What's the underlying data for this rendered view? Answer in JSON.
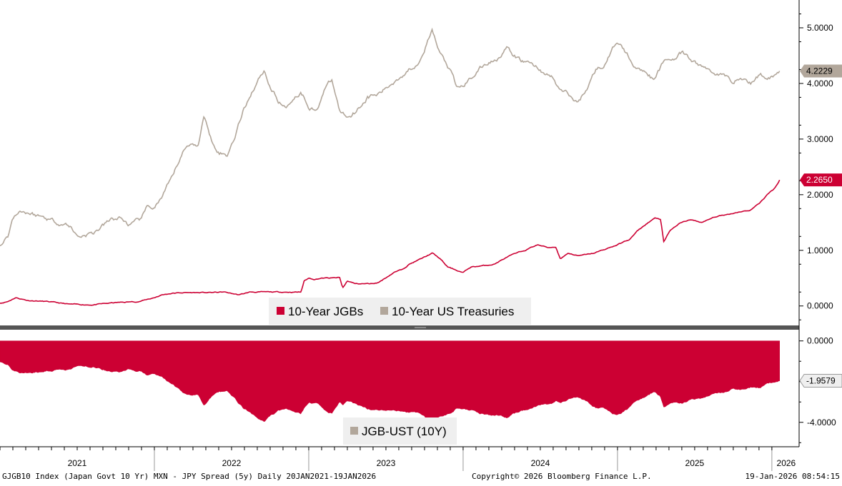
{
  "chart_data": [
    {
      "type": "line",
      "panel": "top",
      "ylim": [
        -0.35,
        5.5
      ],
      "yticks": [
        {
          "value": 5.0,
          "label": "5.0000"
        },
        {
          "value": 4.0,
          "label": "4.0000"
        },
        {
          "value": 3.0,
          "label": "3.0000"
        },
        {
          "value": 2.0,
          "label": "2.0000"
        },
        {
          "value": 1.0,
          "label": "1.0000"
        },
        {
          "value": 0.0,
          "label": "0.0000"
        }
      ],
      "series": [
        {
          "name": "10-Year JGBs",
          "color": "#cc0033",
          "last_value": 2.265,
          "last_label": "2.2650",
          "points": [
            [
              2021.0,
              0.05
            ],
            [
              2021.05,
              0.08
            ],
            [
              2021.1,
              0.15
            ],
            [
              2021.18,
              0.1
            ],
            [
              2021.3,
              0.08
            ],
            [
              2021.45,
              0.03
            ],
            [
              2021.6,
              0.02
            ],
            [
              2021.75,
              0.06
            ],
            [
              2021.9,
              0.08
            ],
            [
              2022.0,
              0.15
            ],
            [
              2022.05,
              0.2
            ],
            [
              2022.12,
              0.23
            ],
            [
              2022.2,
              0.24
            ],
            [
              2022.35,
              0.24
            ],
            [
              2022.45,
              0.25
            ],
            [
              2022.55,
              0.2
            ],
            [
              2022.62,
              0.25
            ],
            [
              2022.75,
              0.25
            ],
            [
              2022.95,
              0.25
            ],
            [
              2022.97,
              0.45
            ],
            [
              2023.0,
              0.5
            ],
            [
              2023.04,
              0.48
            ],
            [
              2023.08,
              0.5
            ],
            [
              2023.15,
              0.5
            ],
            [
              2023.2,
              0.51
            ],
            [
              2023.22,
              0.32
            ],
            [
              2023.25,
              0.45
            ],
            [
              2023.3,
              0.4
            ],
            [
              2023.4,
              0.4
            ],
            [
              2023.45,
              0.42
            ],
            [
              2023.55,
              0.6
            ],
            [
              2023.6,
              0.65
            ],
            [
              2023.65,
              0.75
            ],
            [
              2023.73,
              0.85
            ],
            [
              2023.8,
              0.95
            ],
            [
              2023.85,
              0.85
            ],
            [
              2023.9,
              0.7
            ],
            [
              2023.95,
              0.65
            ],
            [
              2024.0,
              0.6
            ],
            [
              2024.05,
              0.7
            ],
            [
              2024.12,
              0.72
            ],
            [
              2024.2,
              0.75
            ],
            [
              2024.3,
              0.9
            ],
            [
              2024.4,
              1.0
            ],
            [
              2024.48,
              1.1
            ],
            [
              2024.55,
              1.05
            ],
            [
              2024.6,
              1.06
            ],
            [
              2024.63,
              0.85
            ],
            [
              2024.68,
              0.95
            ],
            [
              2024.75,
              0.9
            ],
            [
              2024.85,
              0.95
            ],
            [
              2024.95,
              1.05
            ],
            [
              2025.0,
              1.1
            ],
            [
              2025.08,
              1.2
            ],
            [
              2025.13,
              1.35
            ],
            [
              2025.2,
              1.5
            ],
            [
              2025.24,
              1.58
            ],
            [
              2025.28,
              1.55
            ],
            [
              2025.3,
              1.15
            ],
            [
              2025.34,
              1.35
            ],
            [
              2025.4,
              1.48
            ],
            [
              2025.47,
              1.55
            ],
            [
              2025.55,
              1.5
            ],
            [
              2025.63,
              1.6
            ],
            [
              2025.72,
              1.65
            ],
            [
              2025.8,
              1.7
            ],
            [
              2025.86,
              1.72
            ],
            [
              2025.92,
              1.85
            ],
            [
              2025.97,
              2.0
            ],
            [
              2026.02,
              2.12
            ],
            [
              2026.05,
              2.265
            ]
          ]
        },
        {
          "name": "10-Year US Treasuries",
          "color": "#b2a79b",
          "last_value": 4.2229,
          "last_label": "4.2229",
          "points": [
            [
              2021.0,
              1.08
            ],
            [
              2021.05,
              1.25
            ],
            [
              2021.08,
              1.55
            ],
            [
              2021.12,
              1.72
            ],
            [
              2021.18,
              1.68
            ],
            [
              2021.25,
              1.62
            ],
            [
              2021.3,
              1.58
            ],
            [
              2021.38,
              1.5
            ],
            [
              2021.45,
              1.45
            ],
            [
              2021.5,
              1.25
            ],
            [
              2021.55,
              1.28
            ],
            [
              2021.6,
              1.3
            ],
            [
              2021.65,
              1.4
            ],
            [
              2021.72,
              1.55
            ],
            [
              2021.78,
              1.58
            ],
            [
              2021.84,
              1.45
            ],
            [
              2021.9,
              1.52
            ],
            [
              2021.95,
              1.75
            ],
            [
              2022.0,
              1.78
            ],
            [
              2022.05,
              1.95
            ],
            [
              2022.12,
              2.32
            ],
            [
              2022.18,
              2.75
            ],
            [
              2022.24,
              2.95
            ],
            [
              2022.28,
              2.85
            ],
            [
              2022.32,
              3.4
            ],
            [
              2022.37,
              3.0
            ],
            [
              2022.42,
              2.78
            ],
            [
              2022.47,
              2.7
            ],
            [
              2022.52,
              3.05
            ],
            [
              2022.58,
              3.55
            ],
            [
              2022.63,
              3.85
            ],
            [
              2022.67,
              4.05
            ],
            [
              2022.71,
              4.25
            ],
            [
              2022.75,
              3.95
            ],
            [
              2022.8,
              3.7
            ],
            [
              2022.85,
              3.55
            ],
            [
              2022.9,
              3.75
            ],
            [
              2022.95,
              3.85
            ],
            [
              2023.0,
              3.6
            ],
            [
              2023.05,
              3.5
            ],
            [
              2023.1,
              3.9
            ],
            [
              2023.15,
              4.05
            ],
            [
              2023.2,
              3.5
            ],
            [
              2023.25,
              3.4
            ],
            [
              2023.3,
              3.5
            ],
            [
              2023.38,
              3.75
            ],
            [
              2023.45,
              3.8
            ],
            [
              2023.52,
              3.95
            ],
            [
              2023.58,
              4.1
            ],
            [
              2023.65,
              4.25
            ],
            [
              2023.7,
              4.35
            ],
            [
              2023.76,
              4.7
            ],
            [
              2023.8,
              4.95
            ],
            [
              2023.84,
              4.6
            ],
            [
              2023.88,
              4.4
            ],
            [
              2023.92,
              4.2
            ],
            [
              2023.96,
              3.9
            ],
            [
              2024.0,
              3.95
            ],
            [
              2024.05,
              4.1
            ],
            [
              2024.1,
              4.25
            ],
            [
              2024.15,
              4.35
            ],
            [
              2024.22,
              4.45
            ],
            [
              2024.28,
              4.65
            ],
            [
              2024.32,
              4.5
            ],
            [
              2024.38,
              4.4
            ],
            [
              2024.45,
              4.35
            ],
            [
              2024.52,
              4.2
            ],
            [
              2024.58,
              4.1
            ],
            [
              2024.62,
              3.9
            ],
            [
              2024.66,
              3.85
            ],
            [
              2024.7,
              3.75
            ],
            [
              2024.74,
              3.65
            ],
            [
              2024.8,
              3.9
            ],
            [
              2024.86,
              4.25
            ],
            [
              2024.92,
              4.35
            ],
            [
              2024.96,
              4.55
            ],
            [
              2025.0,
              4.78
            ],
            [
              2025.04,
              4.6
            ],
            [
              2025.08,
              4.45
            ],
            [
              2025.13,
              4.25
            ],
            [
              2025.18,
              4.25
            ],
            [
              2025.24,
              4.05
            ],
            [
              2025.3,
              4.4
            ],
            [
              2025.36,
              4.45
            ],
            [
              2025.42,
              4.55
            ],
            [
              2025.48,
              4.4
            ],
            [
              2025.55,
              4.3
            ],
            [
              2025.62,
              4.2
            ],
            [
              2025.68,
              4.15
            ],
            [
              2025.74,
              4.05
            ],
            [
              2025.8,
              4.1
            ],
            [
              2025.86,
              4.0
            ],
            [
              2025.92,
              4.15
            ],
            [
              2025.97,
              4.12
            ],
            [
              2026.02,
              4.16
            ],
            [
              2026.05,
              4.2229
            ]
          ]
        }
      ],
      "legend": [
        "10-Year JGBs",
        "10-Year US Treasuries"
      ]
    },
    {
      "type": "area",
      "panel": "bottom",
      "ylim": [
        -5.2,
        0.55
      ],
      "yticks": [
        {
          "value": 0.0,
          "label": "0.0000"
        },
        {
          "value": -4.0,
          "label": "-4.0000"
        }
      ],
      "series": [
        {
          "name": "JGB-UST (10Y)",
          "color": "#cc0033",
          "last_value": -1.9579,
          "last_label": "-1.9579"
        }
      ],
      "legend": [
        "JGB-UST (10Y)"
      ]
    }
  ],
  "x_axis": {
    "xlim": [
      2021.0,
      2026.07
    ],
    "year_labels": [
      "2021",
      "2022",
      "2023",
      "2024",
      "2025",
      "2026"
    ],
    "year_starts": [
      2022,
      2023,
      2024,
      2025,
      2026
    ]
  },
  "footer": {
    "left": "GJGB10 Index (Japan Govt 10 Yr) MXN - JPY Spread (5y) Daily 20JAN2021-19JAN2026",
    "center": "Copyright© 2026 Bloomberg Finance L.P.",
    "right": "19-Jan-2026 08:54:15"
  },
  "colors": {
    "jgb": "#cc0033",
    "ust": "#b2a79b",
    "legend_bg": "#efefef",
    "axis": "#000000",
    "grid": "#cccccc"
  }
}
